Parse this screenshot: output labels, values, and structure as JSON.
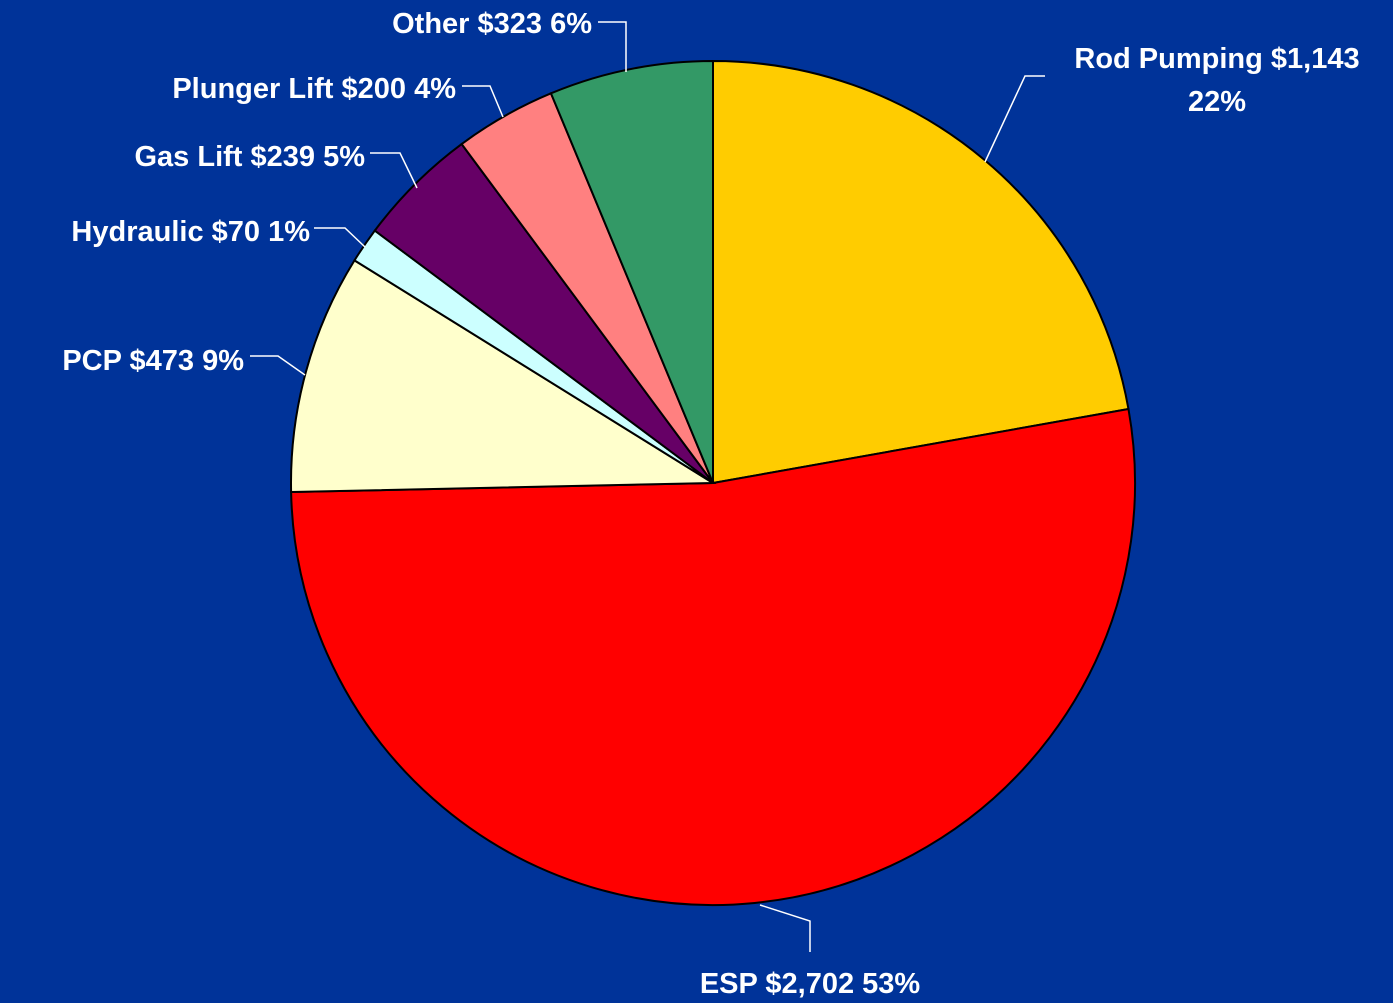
{
  "chart_data": {
    "type": "pie",
    "background": "#003399",
    "slices": [
      {
        "name": "Rod Pumping",
        "value": 1143,
        "value_label": "$1,143",
        "percent_label": "22%",
        "color": "#FFCC00"
      },
      {
        "name": "ESP",
        "value": 2702,
        "value_label": "$2,702",
        "percent_label": "53%",
        "color": "#FF0000"
      },
      {
        "name": "PCP",
        "value": 473,
        "value_label": "$473",
        "percent_label": "9%",
        "color": "#FFFFCC"
      },
      {
        "name": "Hydraulic",
        "value": 70,
        "value_label": "$70",
        "percent_label": "1%",
        "color": "#CCFFFF"
      },
      {
        "name": "Gas Lift",
        "value": 239,
        "value_label": "$239",
        "percent_label": "5%",
        "color": "#660066"
      },
      {
        "name": "Plunger Lift",
        "value": 200,
        "value_label": "$200",
        "percent_label": "4%",
        "color": "#FF8080"
      },
      {
        "name": "Other",
        "value": 323,
        "value_label": "$323",
        "percent_label": "6%",
        "color": "#339966"
      }
    ],
    "labels": [
      "Rod Pumping  $1,143",
      "22%",
      "ESP  $2,702  53%",
      "PCP  $473  9%",
      "Hydraulic  $70  1%",
      "Gas Lift  $239  5%",
      "Plunger Lift  $200  4%",
      "Other  $323  6%"
    ]
  }
}
